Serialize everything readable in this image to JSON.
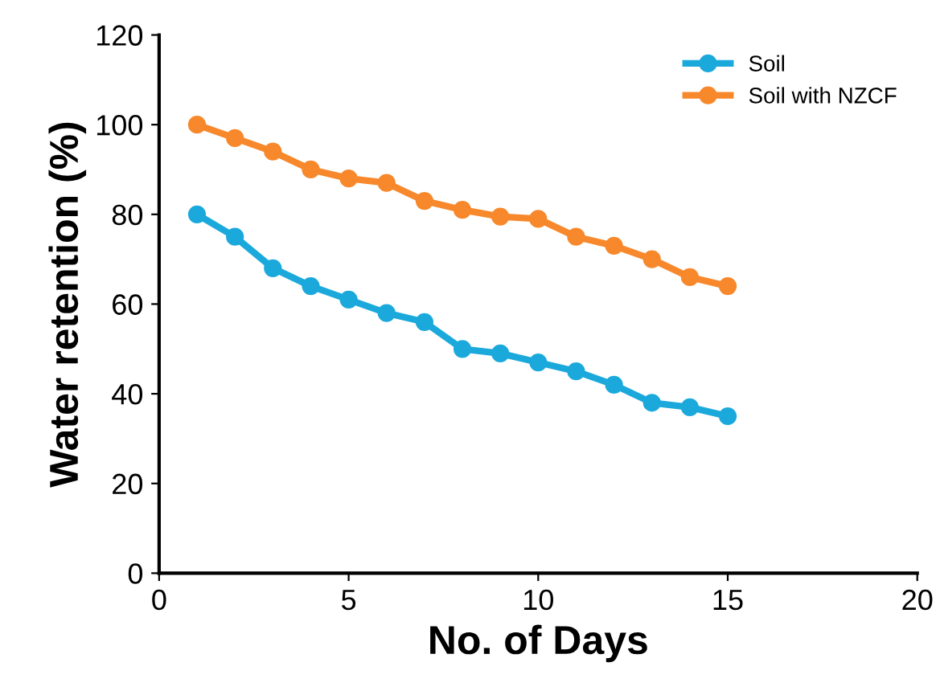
{
  "chart_data": {
    "type": "line",
    "xlabel": "No. of Days",
    "ylabel": "Water retention (%)",
    "x": [
      1,
      2,
      3,
      4,
      5,
      6,
      7,
      8,
      9,
      10,
      11,
      12,
      13,
      14,
      15
    ],
    "series": [
      {
        "name": "Soil",
        "color": "#1ba9dc",
        "values": [
          80,
          75,
          68,
          64,
          61,
          58,
          56,
          50,
          49,
          47,
          45,
          42,
          38,
          37,
          35
        ]
      },
      {
        "name": "Soil with NZCF",
        "color": "#f7882b",
        "values": [
          100,
          97,
          94,
          90,
          88,
          87,
          83,
          81,
          79.5,
          79,
          75,
          73,
          70,
          66,
          64
        ]
      }
    ],
    "xlim": [
      0,
      20
    ],
    "xticks": [
      0,
      5,
      10,
      15,
      20
    ],
    "ylim": [
      0,
      120
    ],
    "yticks": [
      0,
      20,
      40,
      60,
      80,
      100,
      120
    ],
    "grid": false,
    "legend": "top right",
    "marker": "circle",
    "line_style": "solid"
  }
}
